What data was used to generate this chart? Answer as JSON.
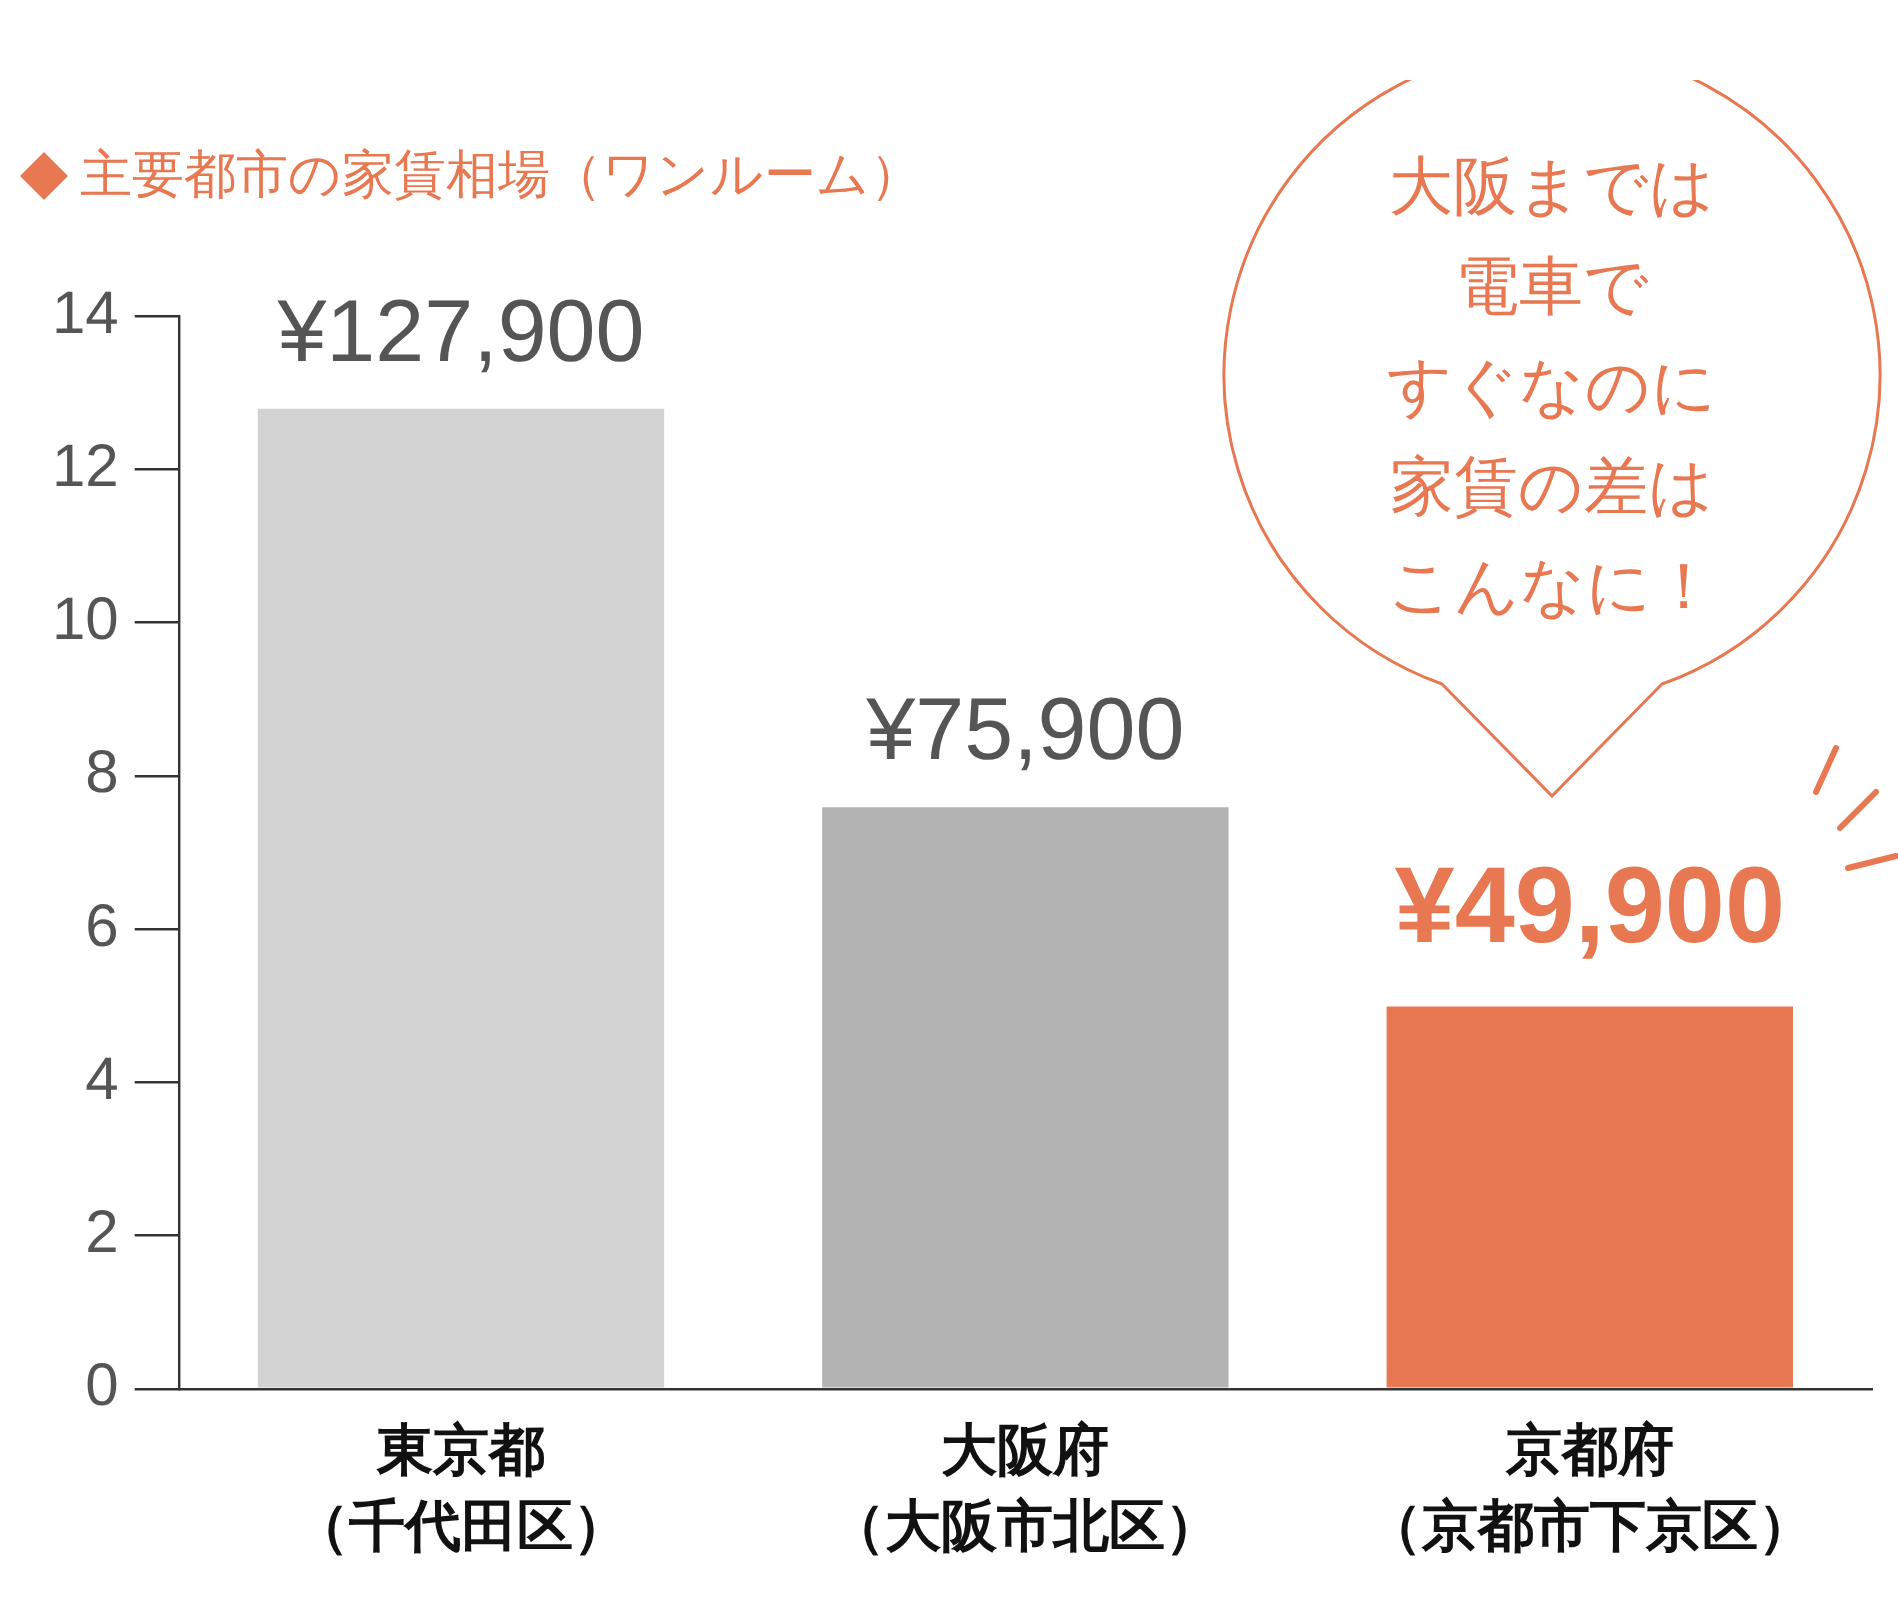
{
  "chart_data": {
    "type": "bar",
    "title": "主要都市の家賃相場（ワンルーム）",
    "categories": [
      "東京都（千代田区）",
      "大阪府（大阪市北区）",
      "京都府（京都市下京区）"
    ],
    "values": [
      12.79,
      7.59,
      4.99
    ],
    "colors": [
      "#d3d3d3",
      "#b3b3b3",
      "#e77852"
    ],
    "ylim": [
      0,
      14
    ],
    "yticks": [
      0,
      2,
      4,
      6,
      8,
      10,
      12,
      14
    ],
    "grid": false,
    "legend": false,
    "annotations": [
      "大阪までは",
      "電車で",
      "すぐなのに",
      "家賃の差は",
      "こんなに！",
      {
        "text": "¥127,900",
        "x": "東京都（千代田区）",
        "y": 12.79
      },
      {
        "text": "¥75,900",
        "x": "大阪府（大阪市北区）",
        "y": 7.59
      },
      {
        "text": "¥49,900",
        "x": "京都府（京都市下京区）",
        "y": 4.99
      }
    ]
  }
}
